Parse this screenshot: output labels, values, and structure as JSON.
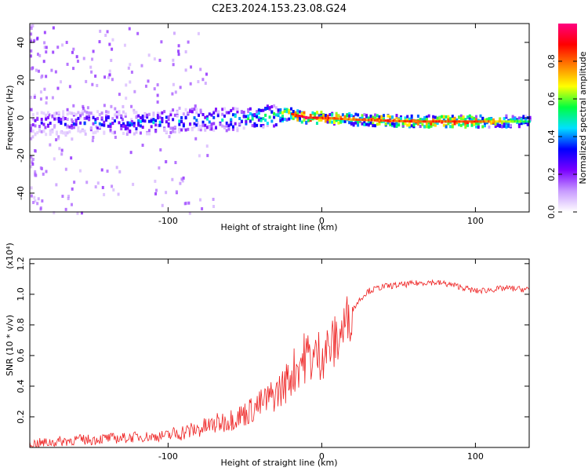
{
  "title": "C2E3.2024.153.23.08.G24",
  "chart_data": [
    {
      "type": "heatmap",
      "xlabel": "Height of straight line (km)",
      "ylabel": "Frequency (Hz)",
      "xlim": [
        -190,
        135
      ],
      "ylim": [
        -50,
        50
      ],
      "xticks": [
        -100,
        0,
        100
      ],
      "xtick_labels": [
        "-100",
        "0",
        "100"
      ],
      "yticks": [
        -40,
        -20,
        0,
        20,
        40
      ],
      "ytick_labels": [
        "-40",
        "-20",
        "0",
        "20",
        "40"
      ],
      "colorbar": {
        "label": "Normalized spectral amplitude",
        "range": [
          0,
          1
        ],
        "ticks": [
          0.0,
          0.2,
          0.4,
          0.6,
          0.8
        ],
        "tick_labels": [
          "0.0",
          "0.2",
          "0.4",
          "0.6",
          "0.8"
        ],
        "colormap": [
          "#ffffff",
          "#c89bff",
          "#7a00ff",
          "#0000ff",
          "#00e0ff",
          "#00ff40",
          "#ffff00",
          "#ff8000",
          "#ff0000",
          "#ff0080"
        ]
      },
      "ridge": {
        "x": [
          -185,
          -150,
          -120,
          -100,
          -80,
          -60,
          -40,
          -30,
          -20,
          -10,
          0,
          20,
          60,
          100,
          135
        ],
        "freq": [
          -3,
          -2,
          -3,
          -2,
          -1,
          -1,
          0,
          1,
          2,
          0,
          0,
          -1,
          -2,
          -2,
          -2
        ],
        "amplitude": [
          0.35,
          0.4,
          0.45,
          0.45,
          0.45,
          0.5,
          0.55,
          0.65,
          0.9,
          1.0,
          0.9,
          0.85,
          0.9,
          0.9,
          0.55
        ]
      },
      "grid": false
    },
    {
      "type": "line",
      "xlabel": "Height of straight line (km)",
      "ylabel": "SNR (10 * v/v)",
      "y_multiplier": "(x10⁴)",
      "xlim": [
        -190,
        135
      ],
      "ylim": [
        0,
        1.23
      ],
      "xticks": [
        -100,
        0,
        100
      ],
      "xtick_labels": [
        "-100",
        "0",
        "100"
      ],
      "yticks": [
        0.2,
        0.4,
        0.6,
        0.8,
        1.0,
        1.2
      ],
      "ytick_labels": [
        "0.2",
        "0.4",
        "0.6",
        "0.8",
        "1.0",
        "1.2"
      ],
      "color": "#ee2222",
      "series": [
        {
          "x": [
            -190,
            -180,
            -170,
            -160,
            -150,
            -140,
            -130,
            -120,
            -110,
            -100,
            -90,
            -80,
            -70,
            -60,
            -50,
            -40,
            -30,
            -25,
            -20,
            -15,
            -10,
            -5,
            0,
            5,
            10,
            15,
            20,
            25,
            30,
            40,
            50,
            60,
            70,
            80,
            90,
            100,
            110,
            120,
            135
          ],
          "y": [
            0.02,
            0.03,
            0.04,
            0.05,
            0.05,
            0.06,
            0.06,
            0.07,
            0.07,
            0.08,
            0.1,
            0.12,
            0.15,
            0.18,
            0.22,
            0.28,
            0.35,
            0.4,
            0.47,
            0.55,
            0.6,
            0.58,
            0.62,
            0.65,
            0.7,
            0.8,
            0.9,
            0.97,
            1.02,
            1.05,
            1.06,
            1.07,
            1.08,
            1.07,
            1.05,
            1.02,
            1.03,
            1.04,
            1.03
          ]
        }
      ],
      "grid": false
    }
  ]
}
